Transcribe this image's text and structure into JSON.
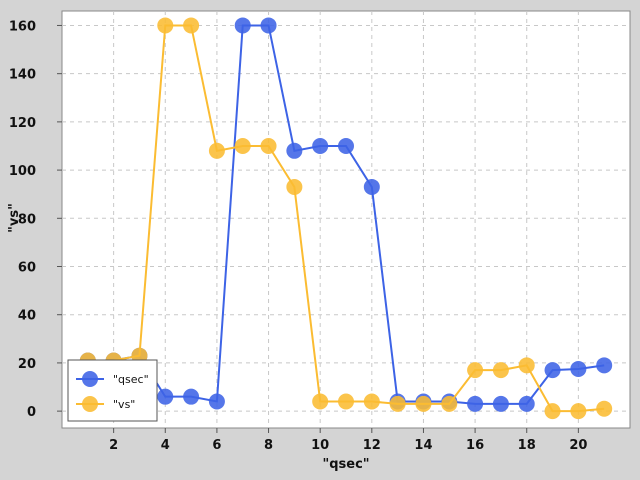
{
  "chart_data": {
    "type": "line",
    "xlabel": "\"qsec\"",
    "ylabel": "\"vs\"",
    "xlim": [
      0,
      22
    ],
    "ylim": [
      -7,
      166
    ],
    "xticks": [
      2,
      4,
      6,
      8,
      10,
      12,
      14,
      16,
      18,
      20
    ],
    "yticks": [
      0,
      20,
      40,
      60,
      80,
      100,
      120,
      140,
      160
    ],
    "grid": true,
    "legend_position": "bottom-left",
    "series": [
      {
        "name": "\"qsec\"",
        "color": "#3d63e6",
        "x": [
          1,
          2,
          3,
          4,
          5,
          6,
          7,
          8,
          9,
          10,
          11,
          12,
          13,
          14,
          15,
          16,
          17,
          18,
          19,
          20,
          21
        ],
        "y": [
          21,
          21,
          23,
          6,
          6,
          4,
          160,
          160,
          108,
          110,
          110,
          93,
          4,
          4,
          4,
          3,
          3,
          3,
          17,
          17.5,
          19
        ]
      },
      {
        "name": "\"vs\"",
        "color": "#fbbc32",
        "x": [
          1,
          2,
          3,
          4,
          5,
          6,
          7,
          8,
          9,
          10,
          11,
          12,
          13,
          14,
          15,
          16,
          17,
          18,
          19,
          20,
          21
        ],
        "y": [
          21,
          21,
          23,
          160,
          160,
          108,
          110,
          110,
          93,
          4,
          4,
          4,
          3,
          3,
          3,
          17,
          17,
          19,
          0,
          0,
          1
        ]
      }
    ]
  }
}
